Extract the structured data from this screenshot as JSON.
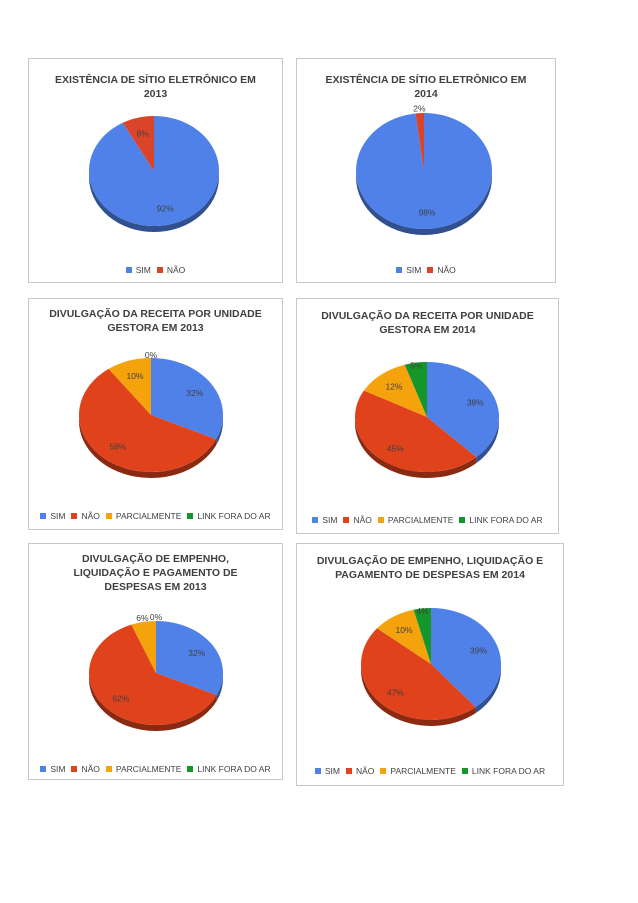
{
  "chart_data": [
    {
      "type": "pie",
      "title": "EXISTÊNCIA DE SÍTIO ELETRÔNICO EM 2013",
      "categories": [
        "SIM",
        "NÃO"
      ],
      "values": [
        92,
        8
      ],
      "labels": [
        "92%",
        "8%"
      ],
      "colors": [
        "#4f81e8",
        "#d9442a"
      ],
      "legend_position": "bottom"
    },
    {
      "type": "pie",
      "title": "EXISTÊNCIA DE SÍTIO ELETRÔNICO EM 2014",
      "categories": [
        "SIM",
        "NÃO"
      ],
      "values": [
        98,
        2
      ],
      "labels": [
        "98%",
        "2%"
      ],
      "colors": [
        "#4f81e8",
        "#d9442a"
      ],
      "legend_position": "bottom"
    },
    {
      "type": "pie",
      "title": "DIVULGAÇÃO DA RECEITA POR UNIDADE GESTORA EM 2013",
      "categories": [
        "SIM",
        "NÃO",
        "PARCIALMENTE",
        "LINK FORA DO AR"
      ],
      "values": [
        32,
        58,
        10,
        0
      ],
      "labels": [
        "32%",
        "58%",
        "10%",
        "0%"
      ],
      "colors": [
        "#4f81e8",
        "#e0421c",
        "#f5a30d",
        "#14962a"
      ],
      "legend_position": "bottom"
    },
    {
      "type": "pie",
      "title": "DIVULGAÇÃO DA RECEITA POR UNIDADE GESTORA EM 2014",
      "categories": [
        "SIM",
        "NÃO",
        "PARCIALMENTE",
        "LINK FORA DO AR"
      ],
      "values": [
        38,
        45,
        12,
        5
      ],
      "labels": [
        "38%",
        "45%",
        "12%",
        "5%"
      ],
      "colors": [
        "#4f81e8",
        "#e0421c",
        "#f5a30d",
        "#14962a"
      ],
      "legend_position": "bottom"
    },
    {
      "type": "pie",
      "title": "DIVULGAÇÃO DE EMPENHO, LIQUIDAÇÃO E PAGAMENTO DE DESPESAS EM 2013",
      "categories": [
        "SIM",
        "NÃO",
        "PARCIALMENTE",
        "LINK FORA DO AR"
      ],
      "values": [
        32,
        62,
        6,
        0
      ],
      "labels": [
        "32%",
        "62%",
        "6%",
        "0%"
      ],
      "colors": [
        "#4f81e8",
        "#e0421c",
        "#f5a30d",
        "#14962a"
      ],
      "legend_position": "bottom"
    },
    {
      "type": "pie",
      "title": "DIVULGAÇÃO DE EMPENHO, LIQUIDAÇÃO E PAGAMENTO DE DESPESAS EM 2014",
      "categories": [
        "SIM",
        "NÃO",
        "PARCIALMENTE",
        "LINK FORA DO AR"
      ],
      "values": [
        39,
        47,
        10,
        4
      ],
      "labels": [
        "39%",
        "47%",
        "10%",
        "4%"
      ],
      "colors": [
        "#4f81e8",
        "#e0421c",
        "#f5a30d",
        "#14962a"
      ],
      "legend_position": "bottom"
    }
  ]
}
